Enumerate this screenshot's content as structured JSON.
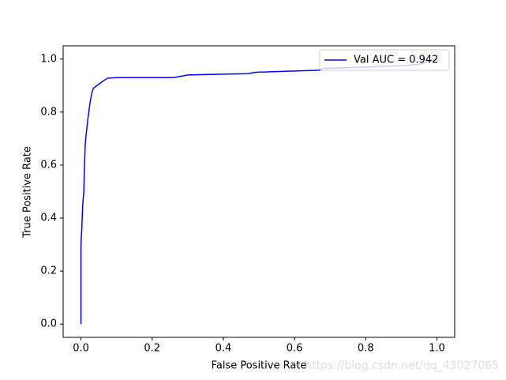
{
  "chart_data": {
    "type": "line",
    "x_label": "False Positive Rate",
    "y_label": "True Positive Rate",
    "xlim": [
      -0.05,
      1.05
    ],
    "ylim": [
      -0.05,
      1.05
    ],
    "xticks": [
      {
        "value": 0,
        "label": "0.0"
      },
      0.2,
      0.4,
      0.6,
      0.8,
      {
        "value": 1,
        "label": "1.0"
      }
    ],
    "yticks": [
      {
        "value": 0,
        "label": "0.0"
      },
      0.2,
      0.4,
      0.6,
      0.8,
      {
        "value": 1,
        "label": "1.0"
      }
    ],
    "x": [
      0,
      0,
      0.002,
      0.005,
      0.008,
      0.01,
      0.012,
      0.015,
      0.02,
      0.025,
      0.03,
      0.035,
      0.05,
      0.06,
      0.075,
      0.1,
      0.26,
      0.3,
      0.4,
      0.47,
      0.49,
      0.6,
      0.67,
      0.68,
      0.8,
      0.9,
      0.95,
      1
    ],
    "series": [
      {
        "name": "Val AUC = 0.942",
        "color": "#0000ff",
        "values": [
          0,
          0.3,
          0.35,
          0.45,
          0.5,
          0.6,
          0.68,
          0.72,
          0.78,
          0.83,
          0.87,
          0.89,
          0.905,
          0.915,
          0.928,
          0.93,
          0.93,
          0.94,
          0.943,
          0.945,
          0.95,
          0.955,
          0.958,
          0.965,
          0.97,
          0.975,
          0.98,
          1
        ]
      }
    ],
    "legend": "upper right",
    "watermark": "https://blog.csdn.net/qq_43027065"
  }
}
